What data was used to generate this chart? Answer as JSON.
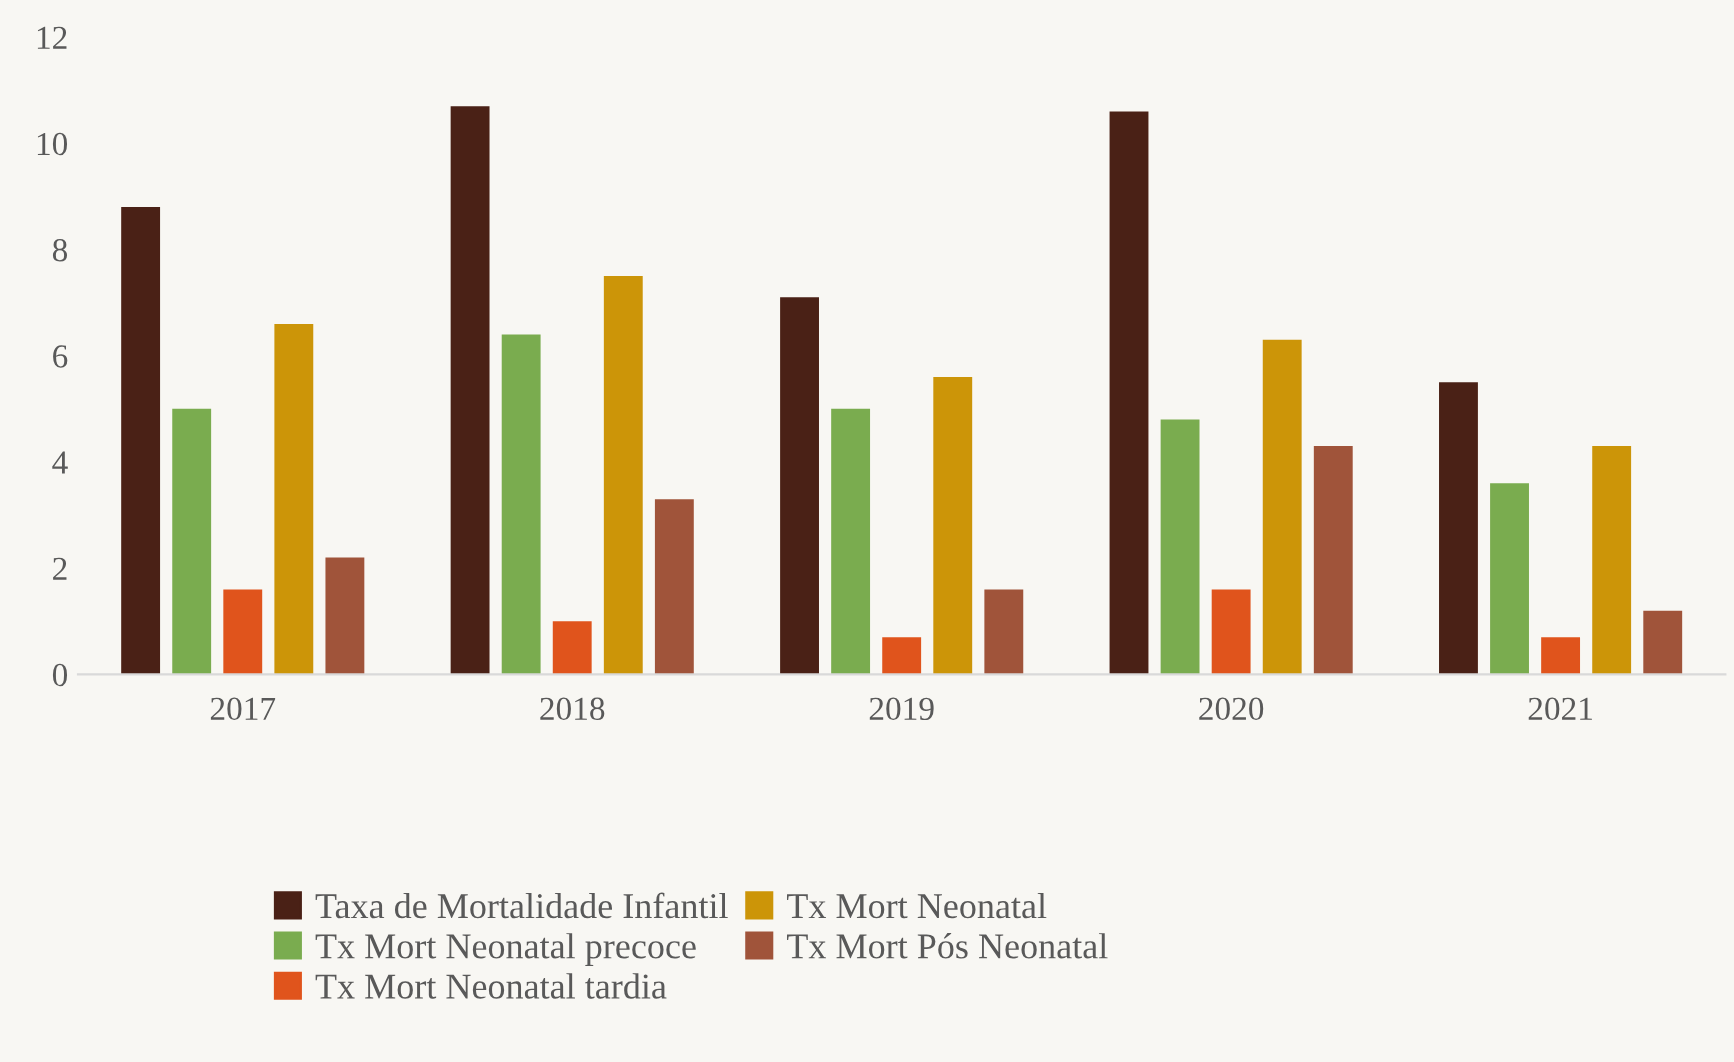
{
  "chart_data": {
    "type": "bar",
    "categories": [
      "2017",
      "2018",
      "2019",
      "2020",
      "2021"
    ],
    "series": [
      {
        "name": "Taxa de Mortalidade Infantil",
        "color": "#4a2116",
        "values": [
          8.8,
          10.7,
          7.1,
          10.6,
          5.5
        ]
      },
      {
        "name": "Tx Mort Neonatal precoce",
        "color": "#7aac4f",
        "values": [
          5.0,
          6.4,
          5.0,
          4.8,
          3.6
        ]
      },
      {
        "name": "Tx Mort Neonatal tardia",
        "color": "#e0541c",
        "values": [
          1.6,
          1.0,
          0.7,
          1.6,
          0.7
        ]
      },
      {
        "name": "Tx Mort Neonatal",
        "color": "#cc9508",
        "values": [
          6.6,
          7.5,
          5.6,
          6.3,
          4.3
        ]
      },
      {
        "name": "Tx Mort Pós Neonatal",
        "color": "#a0543a",
        "values": [
          2.2,
          3.3,
          1.6,
          4.3,
          1.2
        ]
      }
    ],
    "ylim": [
      0,
      12
    ],
    "yticks": [
      0,
      2,
      4,
      6,
      8,
      10,
      12
    ],
    "grid": false,
    "legend": "bottom"
  }
}
